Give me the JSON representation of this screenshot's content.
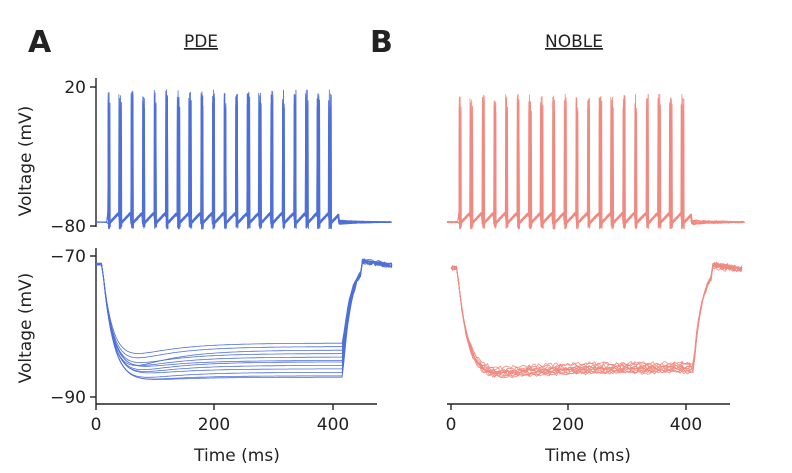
{
  "panels": [
    {
      "letter": "A",
      "title": "PDE"
    },
    {
      "letter": "B",
      "title": "NOBLE"
    }
  ],
  "chart_data": [
    {
      "id": "A-top",
      "type": "line",
      "panel": "A",
      "title": "PDE",
      "ylabel": "Voltage (mV)",
      "xlabel": "",
      "xlim": [
        0,
        500
      ],
      "ylim": [
        -80,
        20
      ],
      "yticks": [
        20,
        -80
      ],
      "xticks": [],
      "color": "#4f6fd8",
      "n_traces": 12,
      "description_values": {
        "resting_potential_mV": -77,
        "spike_peak_mV": 18,
        "stimulus_start_ms": 20,
        "stimulus_end_ms": 400,
        "spike_count_approx": 19
      }
    },
    {
      "id": "B-top",
      "type": "line",
      "panel": "B",
      "title": "NOBLE",
      "ylabel": "",
      "xlabel": "",
      "xlim": [
        0,
        500
      ],
      "ylim": [
        -80,
        20
      ],
      "yticks": [],
      "xticks": [],
      "color": "#f08a80",
      "n_traces": 12,
      "description_values": {
        "resting_potential_mV": -77,
        "spike_peak_mV": 15,
        "stimulus_start_ms": 20,
        "stimulus_end_ms": 400,
        "spike_count_approx": 19
      }
    },
    {
      "id": "A-bottom",
      "type": "line",
      "panel": "A",
      "ylabel": "Voltage (mV)",
      "xlabel": "Time (ms)",
      "xlim": [
        0,
        480
      ],
      "ylim": [
        -90,
        -70
      ],
      "yticks": [
        -70,
        -90
      ],
      "xticks": [
        0,
        200,
        400
      ],
      "color": "#4f6fd8",
      "n_traces": 12,
      "description_values": {
        "baseline_mV": -71,
        "steady_state_range_mV": [
          -87.3,
          -82.5
        ],
        "sag_min_mV": -89.2,
        "stimulus_start_ms": 10,
        "stimulus_end_ms": 400
      }
    },
    {
      "id": "B-bottom",
      "type": "line",
      "panel": "B",
      "ylabel": "",
      "xlabel": "Time (ms)",
      "xlim": [
        0,
        480
      ],
      "ylim": [
        -90,
        -70
      ],
      "yticks": [],
      "xticks": [
        0,
        200,
        400
      ],
      "color": "#f08a80",
      "n_traces": 12,
      "description_values": {
        "baseline_mV": -71.5,
        "steady_state_range_mV": [
          -86.5,
          -85.3
        ],
        "sag_min_mV": -89.0,
        "stimulus_start_ms": 10,
        "stimulus_end_ms": 400
      }
    }
  ]
}
